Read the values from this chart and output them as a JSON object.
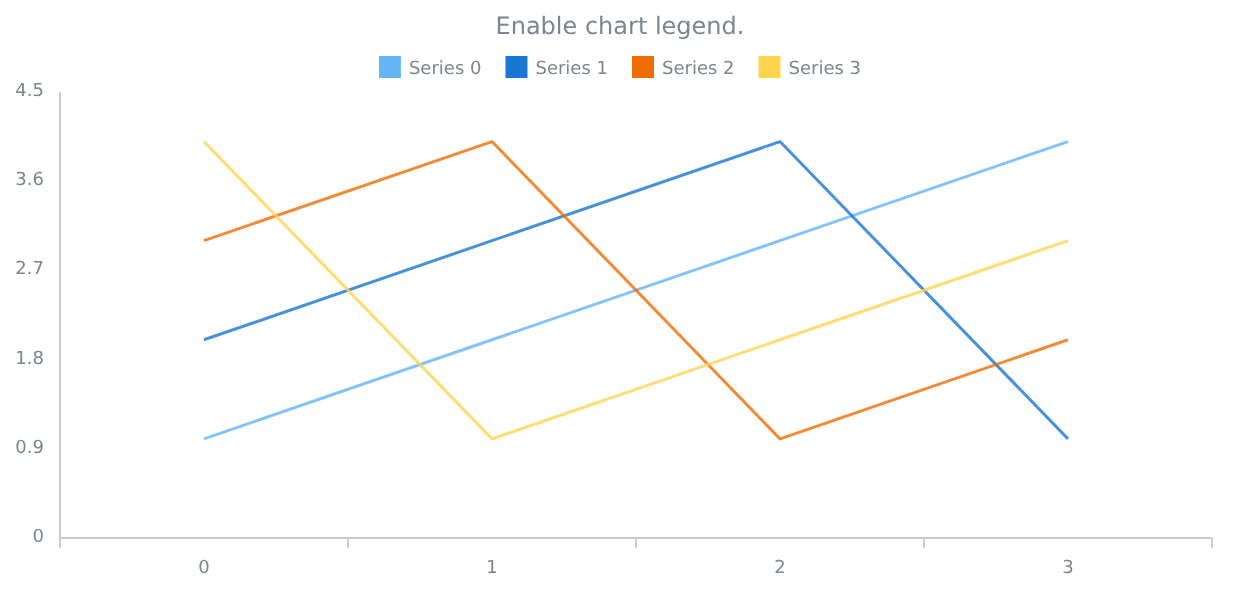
{
  "chart_data": {
    "type": "line",
    "title": "Enable chart legend.",
    "categories": [
      "0",
      "1",
      "2",
      "3"
    ],
    "series": [
      {
        "name": "Series 0",
        "color": "#64b5f6",
        "values": [
          1,
          2,
          3,
          4
        ]
      },
      {
        "name": "Series 1",
        "color": "#1976d2",
        "values": [
          2,
          3,
          4,
          1
        ]
      },
      {
        "name": "Series 2",
        "color": "#ef6c00",
        "values": [
          3,
          4,
          1,
          2
        ]
      },
      {
        "name": "Series 3",
        "color": "#ffd54f",
        "values": [
          4,
          1,
          2,
          3
        ]
      }
    ],
    "ylim": [
      0,
      4.5
    ],
    "yticks": [
      0,
      0.9,
      1.8,
      2.7,
      3.6,
      4.5
    ],
    "grid": false,
    "legend": "top",
    "marker": "none",
    "line_style": "solid"
  }
}
